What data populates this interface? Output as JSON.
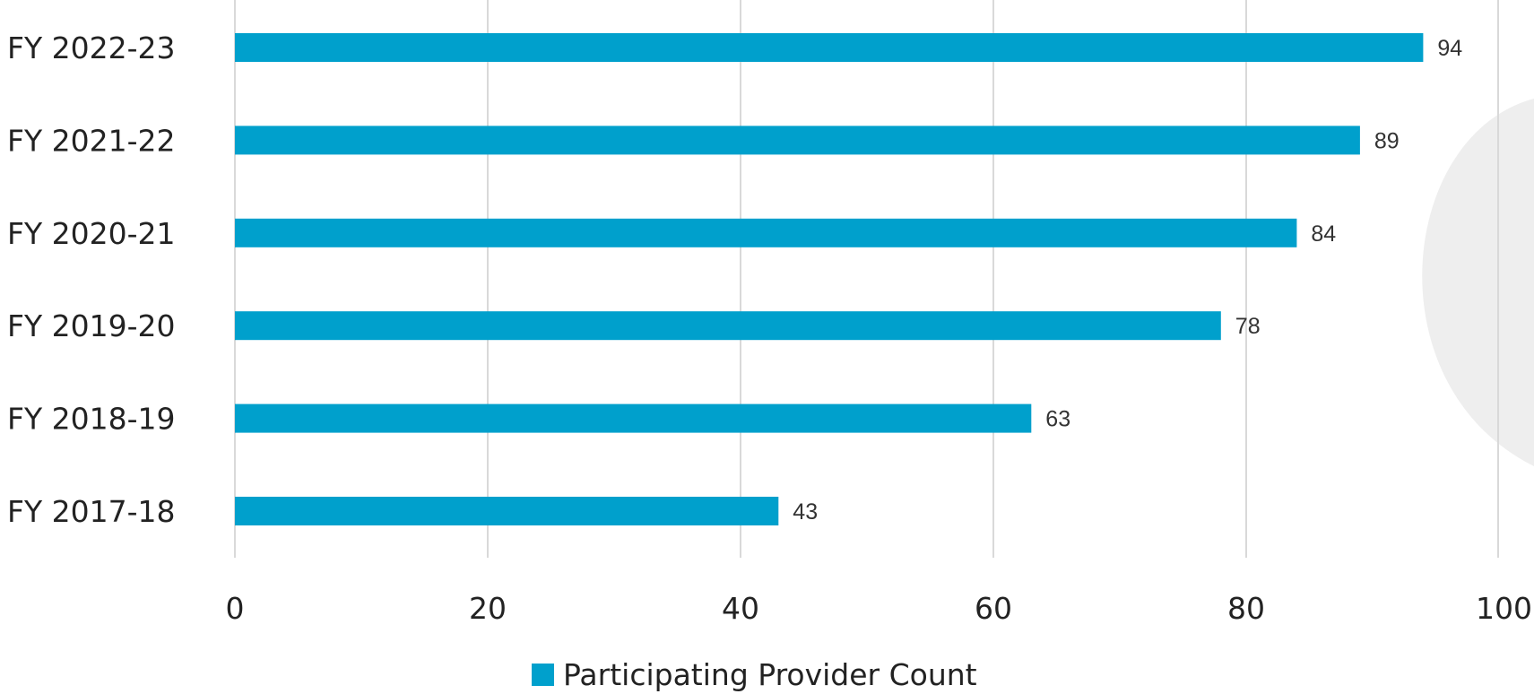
{
  "chart_data": {
    "type": "bar",
    "orientation": "horizontal",
    "categories": [
      "FY 2022-23",
      "FY 2021-22",
      "FY 2020-21",
      "FY 2019-20",
      "FY 2018-19",
      "FY 2017-18"
    ],
    "series": [
      {
        "name": "Participating Provider Count",
        "values": [
          94,
          89,
          84,
          78,
          63,
          43
        ],
        "color": "#00A0CC"
      }
    ],
    "xlim": [
      0,
      100
    ],
    "xticks": [
      0,
      20,
      40,
      60,
      80,
      100
    ],
    "grid": "vertical",
    "data_labels": true,
    "legend_position": "bottom",
    "gridline_color": "#D9D9D9",
    "background_shape_color": "#EEEEEE"
  }
}
